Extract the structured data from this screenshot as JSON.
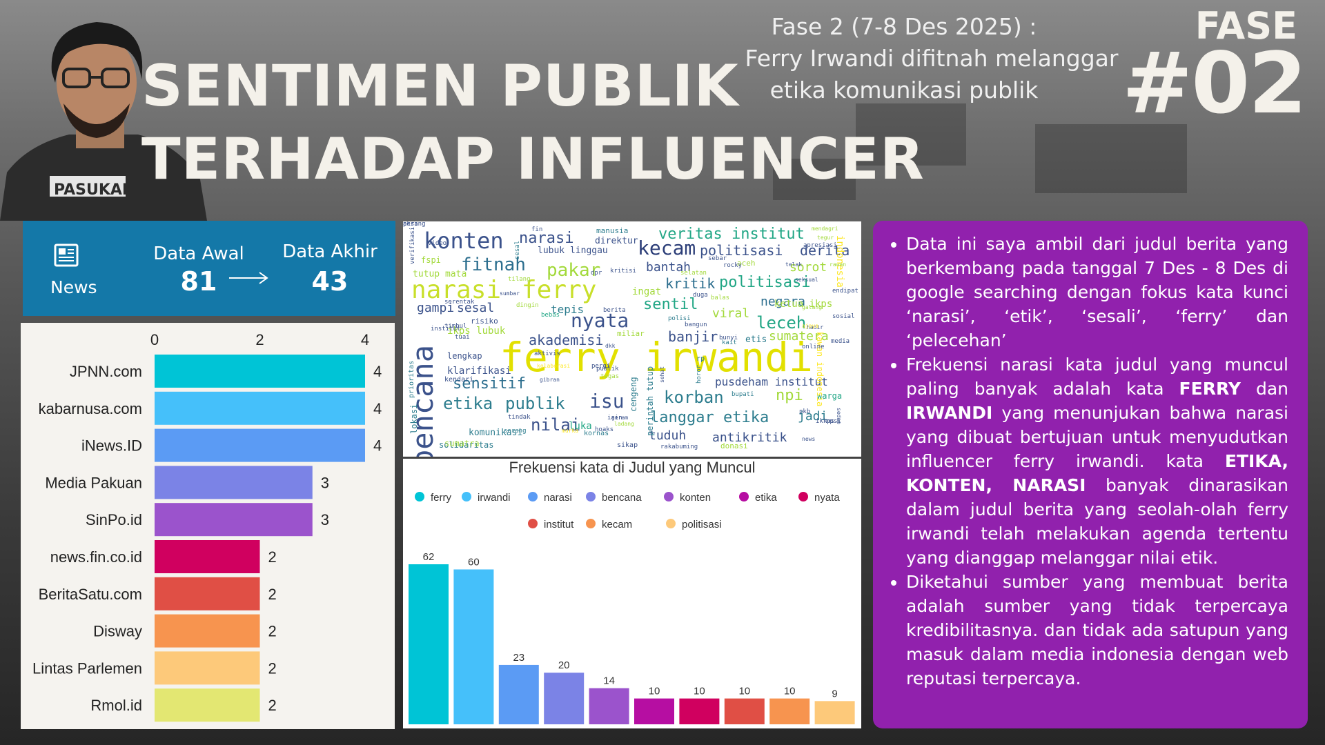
{
  "header": {
    "title_line1": "SENTIMEN PUBLIK",
    "title_line2": "TERHADAP INFLUENCER",
    "subtitle_line1": "Fase 2 (7-8 Des 2025) :",
    "subtitle_line2": "Ferry Irwandi difitnah melanggar",
    "subtitle_line3": "etika komunikasi publik",
    "fase_word": "FASE",
    "fase_number": "#02",
    "shirt_text": "PASUKAN"
  },
  "news_box": {
    "icon": "newspaper-icon",
    "label": "News",
    "awal_label": "Data Awal",
    "awal_value": "81",
    "akhir_label": "Data Akhir",
    "akhir_value": "43"
  },
  "chart_data": [
    {
      "type": "bar",
      "orientation": "horizontal",
      "categories": [
        "JPNN.com",
        "kabarnusa.com",
        "iNews.ID",
        "Media Pakuan",
        "SinPo.id",
        "news.fin.co.id",
        "BeritaSatu.com",
        "Disway",
        "Lintas Parlemen",
        "Rmol.id"
      ],
      "values": [
        4,
        4,
        4,
        3,
        3,
        2,
        2,
        2,
        2,
        2
      ],
      "colors": [
        "#00c4d6",
        "#45c0fa",
        "#5b9bf4",
        "#7b83e6",
        "#9b53cc",
        "#d0005f",
        "#e04f45",
        "#f7944f",
        "#fdc97a",
        "#e3e772"
      ],
      "xticks": [
        0,
        2,
        4
      ],
      "xlim": [
        0,
        4
      ],
      "title": ""
    },
    {
      "type": "bar",
      "title": "Frekuensi kata di Judul yang Muncul",
      "categories": [
        "ferry",
        "irwandi",
        "narasi",
        "bencana",
        "konten",
        "etika",
        "nyata",
        "institut",
        "kecam",
        "politisasi"
      ],
      "values": [
        62,
        60,
        23,
        20,
        14,
        10,
        10,
        10,
        10,
        9
      ],
      "colors": [
        "#00c4d6",
        "#45c0fa",
        "#5b9bf4",
        "#7b83e6",
        "#9b53cc",
        "#b60ea2",
        "#d0005f",
        "#e04f45",
        "#f7944f",
        "#fdc97a"
      ],
      "ylim": [
        0,
        62
      ],
      "legend": "top"
    }
  ],
  "wordcloud": [
    {
      "t": "ferry irwandi",
      "s": 58,
      "c": "#e2e000"
    },
    {
      "t": "bencana",
      "s": 42,
      "c": "#3b528b"
    },
    {
      "t": "narasi",
      "s": 36,
      "c": "#c8df2a"
    },
    {
      "t": "ferry",
      "s": 36,
      "c": "#c8df2a"
    },
    {
      "t": "konten",
      "s": 32,
      "c": "#3b528b"
    },
    {
      "t": "kecam",
      "s": 28,
      "c": "#2c3e78"
    },
    {
      "t": "fitnah",
      "s": 26,
      "c": "#2c6e8e"
    },
    {
      "t": "nyata",
      "s": 28,
      "c": "#3b528b"
    },
    {
      "t": "pakar",
      "s": 26,
      "c": "#a2d93a"
    },
    {
      "t": "isu",
      "s": 28,
      "c": "#3b528b"
    },
    {
      "t": "etika",
      "s": 24,
      "c": "#2d7d8e"
    },
    {
      "t": "publik",
      "s": 24,
      "c": "#2d7d8e"
    },
    {
      "t": "nilai",
      "s": 24,
      "c": "#3b528b"
    },
    {
      "t": "veritas institut",
      "s": 22,
      "c": "#21a685"
    },
    {
      "t": "politisasi",
      "s": 20,
      "c": "#3b528b"
    },
    {
      "t": "derita",
      "s": 20,
      "c": "#3b528b"
    },
    {
      "t": "narasi",
      "s": 22,
      "c": "#3b528b"
    },
    {
      "t": "sensitif",
      "s": 22,
      "c": "#2c6e8e"
    },
    {
      "t": "korban",
      "s": 24,
      "c": "#2d7d8e"
    },
    {
      "t": "langgar etika",
      "s": 22,
      "c": "#2d7d8e"
    },
    {
      "t": "leceh",
      "s": 24,
      "c": "#21a685"
    },
    {
      "t": "sentil",
      "s": 22,
      "c": "#21a685"
    },
    {
      "t": "kritik",
      "s": 20,
      "c": "#2c6e8e"
    },
    {
      "t": "politisasi",
      "s": 22,
      "c": "#21a685"
    },
    {
      "t": "negara",
      "s": 18,
      "c": "#2c6e8e"
    },
    {
      "t": "akademisi",
      "s": 20,
      "c": "#3b528b"
    },
    {
      "t": "banjir",
      "s": 20,
      "c": "#3b528b"
    },
    {
      "t": "bantah",
      "s": 18,
      "c": "#3b528b"
    },
    {
      "t": "gampi",
      "s": 18,
      "c": "#3b528b"
    },
    {
      "t": "sesal",
      "s": 18,
      "c": "#3b528b"
    },
    {
      "t": "tepis",
      "s": 16,
      "c": "#2d7d8e"
    },
    {
      "t": "viral",
      "s": 18,
      "c": "#a2d93a"
    },
    {
      "t": "sorot",
      "s": 18,
      "c": "#a2d93a"
    },
    {
      "t": "sumatera",
      "s": 18,
      "c": "#a2d93a"
    },
    {
      "t": "npi",
      "s": 22,
      "c": "#a2d93a"
    },
    {
      "t": "jadi",
      "s": 18,
      "c": "#2d7d8e"
    },
    {
      "t": "pusdeham institut",
      "s": 16,
      "c": "#3b528b"
    },
    {
      "t": "tuduh",
      "s": 18,
      "c": "#3b528b"
    },
    {
      "t": "antikritik",
      "s": 18,
      "c": "#3b528b"
    },
    {
      "t": "klarifikasi",
      "s": 14,
      "c": "#3b528b"
    },
    {
      "t": "ikps lubuk",
      "s": 14,
      "c": "#a2d93a"
    },
    {
      "t": "lubuk linggau",
      "s": 13,
      "c": "#3b528b"
    },
    {
      "t": "direktur",
      "s": 13,
      "c": "#3b528b"
    },
    {
      "t": "komunikasi",
      "s": 13,
      "c": "#2d7d8e"
    },
    {
      "t": "solidaritas",
      "s": 12,
      "c": "#2d7d8e"
    },
    {
      "t": "sumatra",
      "s": 12,
      "c": "#a2d93a"
    },
    {
      "t": "manusia",
      "s": 11,
      "c": "#2d7d8e"
    },
    {
      "t": "ingat",
      "s": 14,
      "c": "#a2d93a"
    },
    {
      "t": "ketua ikps",
      "s": 14,
      "c": "#a2d93a"
    },
    {
      "t": "warga",
      "s": 12,
      "c": "#21a685"
    },
    {
      "t": "luka",
      "s": 14,
      "c": "#21a685"
    },
    {
      "t": "lengkap",
      "s": 12,
      "c": "#3b528b"
    },
    {
      "t": "tutup mata",
      "s": 13,
      "c": "#a2d93a"
    },
    {
      "t": "fspi",
      "s": 12,
      "c": "#a2d93a"
    },
    {
      "t": "indonesia",
      "s": 14,
      "c": "#fde725"
    },
    {
      "t": "kawan indonesia",
      "s": 12,
      "c": "#fde725"
    },
    {
      "t": "cengeng",
      "s": 12,
      "c": "#2d7d8e"
    },
    {
      "t": "perintah tutup",
      "s": 12,
      "c": "#2d7d8e"
    },
    {
      "t": "lokasi",
      "s": 12,
      "c": "#2d7d8e"
    },
    {
      "t": "prioritas",
      "s": 10,
      "c": "#2d7d8e"
    },
    {
      "t": "verifikasi",
      "s": 9,
      "c": "#3b528b"
    },
    {
      "t": "kornas",
      "s": 10,
      "c": "#2d7d8e"
    },
    {
      "t": "aceh",
      "s": 11,
      "c": "#a2d93a"
    },
    {
      "t": "miliar",
      "s": 11,
      "c": "#a2d93a"
    },
    {
      "t": "risiko",
      "s": 11,
      "c": "#3b528b"
    },
    {
      "t": "kendari",
      "s": 10,
      "c": "#3b528b"
    },
    {
      "t": "sikap",
      "s": 10,
      "c": "#3b528b"
    },
    {
      "t": "donasi",
      "s": 11,
      "c": "#a2d93a"
    },
    {
      "t": "rakabuming",
      "s": 9,
      "c": "#3b528b"
    },
    {
      "t": "online",
      "s": 9,
      "c": "#3b528b"
    },
    {
      "t": "mendagri",
      "s": 8,
      "c": "#a2d93a"
    },
    {
      "t": "tegur",
      "s": 8,
      "c": "#a2d93a"
    },
    {
      "t": "hoaks",
      "s": 9,
      "c": "#3b528b"
    },
    {
      "t": "sedap",
      "s": 8,
      "c": "#3b528b"
    },
    {
      "t": "news",
      "s": 8,
      "c": "#3b528b"
    },
    {
      "t": "pkb",
      "s": 9,
      "c": "#3b528b"
    },
    {
      "t": "bupati",
      "s": 9,
      "c": "#2d7d8e"
    },
    {
      "t": "media",
      "s": 9,
      "c": "#3b528b"
    },
    {
      "t": "sosial",
      "s": 9,
      "c": "#3b528b"
    },
    {
      "t": "rocky",
      "s": 9,
      "c": "#3b528b"
    },
    {
      "t": "sebar",
      "s": 9,
      "c": "#3b528b"
    },
    {
      "t": "selatan",
      "s": 9,
      "c": "#a2d93a"
    },
    {
      "t": "kritisi",
      "s": 9,
      "c": "#3b528b"
    },
    {
      "t": "dpr",
      "s": 9,
      "c": "#3b528b"
    },
    {
      "t": "tilang",
      "s": 9,
      "c": "#a2d93a"
    },
    {
      "t": "sumbar",
      "s": 8,
      "c": "#3b528b"
    },
    {
      "t": "dingin",
      "s": 9,
      "c": "#a2d93a"
    },
    {
      "t": "bebas",
      "s": 9,
      "c": "#21a685"
    },
    {
      "t": "berita",
      "s": 9,
      "c": "#3b528b"
    },
    {
      "t": "polisi",
      "s": 9,
      "c": "#2d7d8e"
    },
    {
      "t": "bangun",
      "s": 9,
      "c": "#3b528b"
    },
    {
      "t": "duga",
      "s": 9,
      "c": "#3b528b"
    },
    {
      "t": "balas",
      "s": 9,
      "c": "#a2d93a"
    },
    {
      "t": "endipat",
      "s": 9,
      "c": "#3b528b"
    },
    {
      "t": "galang",
      "s": 8,
      "c": "#a2d93a"
    },
    {
      "t": "hadir",
      "s": 8,
      "c": "#3b528b"
    },
    {
      "t": "ajaya",
      "s": 8,
      "c": "#fde725"
    },
    {
      "t": "aktivis",
      "s": 9,
      "c": "#3b528b"
    },
    {
      "t": "gibran",
      "s": 8,
      "c": "#3b528b"
    },
    {
      "t": "pergi",
      "s": 9,
      "c": "#3b528b"
    },
    {
      "t": "kolaborasi",
      "s": 8,
      "c": "#fde725"
    },
    {
      "t": "tindak",
      "s": 9,
      "c": "#3b528b"
    },
    {
      "t": "iain",
      "s": 9,
      "c": "#3b528b"
    },
    {
      "t": "serang",
      "s": 9,
      "c": "#2d7d8e"
    },
    {
      "t": "murka",
      "s": 8,
      "c": "#fde725"
    },
    {
      "t": "ladang",
      "s": 8,
      "c": "#a2d93a"
    },
    {
      "t": "geram",
      "s": 8,
      "c": "#3b528b"
    },
    {
      "t": "fin",
      "s": 9,
      "c": "#3b528b"
    },
    {
      "t": "sesal",
      "s": 9,
      "c": "#2d7d8e"
    },
    {
      "t": "video",
      "s": 9,
      "c": "#3b528b"
    },
    {
      "t": "serentak",
      "s": 9,
      "c": "#3b528b"
    },
    {
      "t": "timbul",
      "s": 9,
      "c": "#3b528b"
    },
    {
      "t": "tuai",
      "s": 9,
      "c": "#3b528b"
    },
    {
      "t": "institut",
      "s": 9,
      "c": "#3b528b"
    },
    {
      "t": "rp",
      "s": 10,
      "c": "#2d7d8e"
    },
    {
      "t": "bunyi",
      "s": 9,
      "c": "#3b528b"
    },
    {
      "t": "etis",
      "s": 13,
      "c": "#2d7d8e"
    },
    {
      "t": "apresiasi",
      "s": 9,
      "c": "#3b528b"
    },
    {
      "t": "telak",
      "s": 8,
      "c": "#3b528b"
    },
    {
      "t": "rawan",
      "s": 8,
      "c": "#a2d93a"
    },
    {
      "t": "seksual",
      "s": 8,
      "c": "#3b528b"
    },
    {
      "t": "sehat",
      "s": 8,
      "c": "#3b528b"
    },
    {
      "t": "horor",
      "s": 9,
      "c": "#2d7d8e"
    },
    {
      "t": "kait",
      "s": 9,
      "c": "#2d7d8e"
    },
    {
      "t": "mpsi",
      "s": 9,
      "c": "#3b528b"
    },
    {
      "t": "ikkps",
      "s": 9,
      "c": "#3b528b"
    },
    {
      "t": "dkk",
      "s": 8,
      "c": "#3b528b"
    },
    {
      "t": "publik",
      "s": 9,
      "c": "#3b528b"
    },
    {
      "t": "tegas",
      "s": 9,
      "c": "#a2d93a"
    },
    {
      "t": "perang",
      "s": 9,
      "c": "#3b528b"
    },
    {
      "t": "aksi",
      "s": 9,
      "c": "#3b528b"
    }
  ],
  "bullets": [
    [
      "Data ini saya ambil dari judul berita yang berkembang pada tanggal 7 Des - 8 Des di google searching dengan fokus kata kunci ‘narasi’, ‘etik’, ‘sesali’, ‘ferry’ dan ‘pelecehan’"
    ],
    [
      "Frekuensi narasi kata judul yang muncul paling banyak adalah kata ",
      "FERRY",
      " dan ",
      "IRWANDI",
      " yang menunjukan bahwa narasi yang dibuat bertujuan untuk menyudutkan influencer ferry irwandi. kata ",
      "ETIKA, KONTEN, NARASI",
      " banyak dinarasikan dalam judul berita yang seolah-olah ferry irwandi telah melakukan agenda tertentu yang dianggap melanggar nilai etik."
    ],
    [
      "Diketahui sumber yang membuat berita adalah sumber yang tidak terpercaya kredibilitasnya. dan tidak ada satupun yang masuk dalam media indonesia dengan web reputasi terpercaya."
    ]
  ]
}
